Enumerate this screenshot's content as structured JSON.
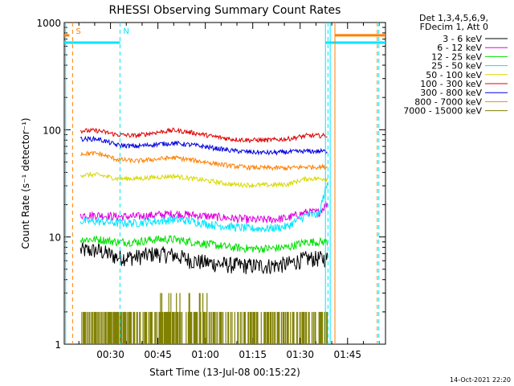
{
  "chart_data": {
    "type": "line",
    "title": "RHESSI Observing Summary Count Rates",
    "xlabel": "Start Time (13-Jul-08 00:15:22)",
    "ylabel": "Count Rate (s⁻¹ detector⁻¹)",
    "x_unit": "minutes after 00:00 UT, 13-Jul-08",
    "xlim": [
      15.37,
      117.0
    ],
    "ylim": [
      1,
      1000
    ],
    "yscale": "log",
    "x_ticks": [
      {
        "value": 30,
        "label": "00:30"
      },
      {
        "value": 45,
        "label": "00:45"
      },
      {
        "value": 60,
        "label": "01:00"
      },
      {
        "value": 75,
        "label": "01:15"
      },
      {
        "value": 90,
        "label": "01:30"
      },
      {
        "value": 105,
        "label": "01:45"
      }
    ],
    "y_ticks": [
      {
        "value": 1,
        "label": "1"
      },
      {
        "value": 10,
        "label": "10"
      },
      {
        "value": 100,
        "label": "100"
      },
      {
        "value": 1000,
        "label": "1000"
      }
    ],
    "legend_header": [
      "Det 1,3,4,5,6,9,",
      "FDecim 1, Att 0"
    ],
    "legend_placement": "right",
    "markers": [
      {
        "label": "S",
        "x": 18.0,
        "color": "#ff8000"
      },
      {
        "label": "N",
        "x": 33.0,
        "color": "#00e5ff"
      }
    ],
    "x": [
      26,
      32,
      38,
      44,
      50,
      56,
      62,
      68,
      74,
      80,
      86,
      92
    ],
    "series": [
      {
        "name": "3 - 6 keV",
        "color": "#000000",
        "values": [
          7.5,
          6.5,
          6.5,
          7,
          6.8,
          6,
          5.7,
          5.5,
          5.4,
          5.4,
          5.6,
          6.3
        ]
      },
      {
        "name": "6 - 12 keV",
        "color": "#e000e0",
        "values": [
          16,
          15.5,
          15.5,
          16,
          16.5,
          16,
          15.5,
          15,
          14.5,
          14.5,
          15,
          17
        ]
      },
      {
        "name": "12 - 25 keV",
        "color": "#00e000",
        "values": [
          9.5,
          9,
          9,
          9.5,
          9.5,
          9,
          8.5,
          8,
          7.8,
          7.8,
          8,
          9
        ]
      },
      {
        "name": "25 - 50 keV",
        "color": "#00e5ff",
        "values": [
          14,
          13.5,
          13.5,
          14,
          14.5,
          14,
          13,
          12.5,
          12,
          12,
          12.5,
          16
        ]
      },
      {
        "name": "50 - 100 keV",
        "color": "#d8d800",
        "values": [
          38,
          35,
          35,
          36,
          37,
          35,
          33,
          31,
          30.5,
          30.5,
          31,
          35
        ]
      },
      {
        "name": "100 - 300 keV",
        "color": "#e00000",
        "values": [
          98,
          90,
          88,
          94,
          99,
          94,
          87,
          82,
          80,
          80,
          82,
          88
        ]
      },
      {
        "name": "300 - 800 keV",
        "color": "#0000e0",
        "values": [
          82,
          72,
          70,
          73,
          75,
          72,
          68,
          64,
          62,
          61,
          62,
          63
        ]
      },
      {
        "name": "800 - 7000 keV",
        "color": "#ff8000",
        "values": [
          60,
          53,
          51,
          53,
          55,
          52,
          49,
          46,
          44.5,
          44,
          44,
          45
        ]
      },
      {
        "name": "7000 - 15000 keV",
        "color": "#808000",
        "values": [
          1.8,
          1.9,
          2.0,
          2.3,
          2.5,
          2.4,
          2.2,
          2.0,
          2.0,
          2.0,
          2.0,
          2.0
        ]
      }
    ]
  },
  "timestamp": "14-Oct-2021 22:20"
}
